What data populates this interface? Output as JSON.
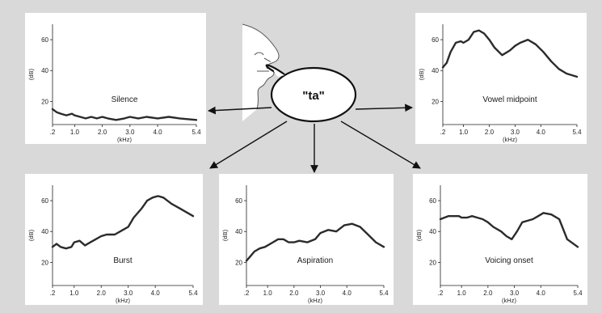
{
  "center": {
    "bubble_text": "\"ta\""
  },
  "chart_data": [
    {
      "id": "silence",
      "type": "line",
      "annotation": "Silence",
      "xlabel": "(kHz)",
      "ylabel": "(dB)",
      "x_tick_labels": [
        ".2",
        "1.0",
        "2.0",
        "3.0",
        "4.0",
        "5.4"
      ],
      "x_tick_values": [
        0.2,
        1.0,
        2.0,
        3.0,
        4.0,
        5.4
      ],
      "y_ticks": [
        20,
        40,
        60
      ],
      "xlim": [
        0.2,
        5.4
      ],
      "ylim": [
        5,
        70
      ],
      "x": [
        0.2,
        0.35,
        0.5,
        0.7,
        0.9,
        1.0,
        1.2,
        1.4,
        1.6,
        1.8,
        2.0,
        2.2,
        2.5,
        2.8,
        3.0,
        3.3,
        3.6,
        4.0,
        4.4,
        4.8,
        5.4
      ],
      "y": [
        15,
        13,
        12,
        11,
        12,
        11,
        10,
        9,
        10,
        9,
        10,
        9,
        8,
        9,
        10,
        9,
        10,
        9,
        10,
        9,
        8
      ]
    },
    {
      "id": "vowel",
      "type": "line",
      "annotation": "Vowel midpoint",
      "xlabel": "(kHz)",
      "ylabel": "(dB)",
      "x_tick_labels": [
        ".2",
        "1.0",
        "2.0",
        "3.0",
        "4.0",
        "5.4"
      ],
      "x_tick_values": [
        0.2,
        1.0,
        2.0,
        3.0,
        4.0,
        5.4
      ],
      "y_ticks": [
        20,
        40,
        60
      ],
      "xlim": [
        0.2,
        5.4
      ],
      "ylim": [
        5,
        70
      ],
      "x": [
        0.2,
        0.35,
        0.5,
        0.7,
        0.9,
        1.0,
        1.2,
        1.4,
        1.6,
        1.8,
        2.0,
        2.2,
        2.5,
        2.8,
        3.0,
        3.2,
        3.5,
        3.8,
        4.1,
        4.4,
        4.7,
        5.0,
        5.4
      ],
      "y": [
        42,
        45,
        52,
        58,
        59,
        58,
        60,
        65,
        66,
        64,
        60,
        55,
        50,
        53,
        56,
        58,
        60,
        57,
        52,
        46,
        41,
        38,
        36
      ]
    },
    {
      "id": "burst",
      "type": "line",
      "annotation": "Burst",
      "xlabel": "(kHz)",
      "ylabel": "(dB)",
      "x_tick_labels": [
        ".2",
        "1.0",
        "2.0",
        "3.0",
        "4.0",
        "5.4"
      ],
      "x_tick_values": [
        0.2,
        1.0,
        2.0,
        3.0,
        4.0,
        5.4
      ],
      "y_ticks": [
        20,
        40,
        60
      ],
      "xlim": [
        0.2,
        5.4
      ],
      "ylim": [
        5,
        70
      ],
      "x": [
        0.2,
        0.35,
        0.5,
        0.7,
        0.9,
        1.0,
        1.2,
        1.4,
        1.6,
        1.8,
        2.0,
        2.2,
        2.5,
        2.8,
        3.0,
        3.2,
        3.5,
        3.7,
        3.9,
        4.1,
        4.3,
        4.6,
        4.9,
        5.2,
        5.4
      ],
      "y": [
        30,
        32,
        30,
        29,
        30,
        33,
        34,
        31,
        33,
        35,
        37,
        38,
        38,
        41,
        43,
        49,
        55,
        60,
        62,
        63,
        62,
        58,
        55,
        52,
        50
      ]
    },
    {
      "id": "aspiration",
      "type": "line",
      "annotation": "Aspiration",
      "xlabel": "(kHz)",
      "ylabel": "(dB)",
      "x_tick_labels": [
        ".2",
        "1.0",
        "2.0",
        "3.0",
        "4.0",
        "5.4"
      ],
      "x_tick_values": [
        0.2,
        1.0,
        2.0,
        3.0,
        4.0,
        5.4
      ],
      "y_ticks": [
        20,
        40,
        60
      ],
      "xlim": [
        0.2,
        5.4
      ],
      "ylim": [
        5,
        70
      ],
      "x": [
        0.2,
        0.35,
        0.5,
        0.7,
        0.9,
        1.0,
        1.2,
        1.4,
        1.6,
        1.8,
        2.0,
        2.2,
        2.5,
        2.8,
        3.0,
        3.3,
        3.6,
        3.9,
        4.2,
        4.5,
        4.8,
        5.1,
        5.4
      ],
      "y": [
        21,
        24,
        27,
        29,
        30,
        31,
        33,
        35,
        35,
        33,
        33,
        34,
        33,
        35,
        39,
        41,
        40,
        44,
        45,
        43,
        38,
        33,
        30
      ]
    },
    {
      "id": "voicing",
      "type": "line",
      "annotation": "Voicing onset",
      "xlabel": "(kHz)",
      "ylabel": "(dB)",
      "x_tick_labels": [
        ".2",
        "1.0",
        "2.0",
        "3.0",
        "4.0",
        "5.4"
      ],
      "x_tick_values": [
        0.2,
        1.0,
        2.0,
        3.0,
        4.0,
        5.4
      ],
      "y_ticks": [
        20,
        40,
        60
      ],
      "xlim": [
        0.2,
        5.4
      ],
      "ylim": [
        5,
        70
      ],
      "x": [
        0.2,
        0.35,
        0.5,
        0.7,
        0.9,
        1.0,
        1.2,
        1.4,
        1.6,
        1.8,
        2.0,
        2.2,
        2.5,
        2.7,
        2.9,
        3.1,
        3.3,
        3.5,
        3.7,
        3.9,
        4.1,
        4.4,
        4.7,
        5.0,
        5.4
      ],
      "y": [
        48,
        49,
        50,
        50,
        50,
        49,
        49,
        50,
        49,
        48,
        46,
        43,
        40,
        37,
        35,
        40,
        46,
        47,
        48,
        50,
        52,
        51,
        48,
        35,
        30
      ]
    }
  ]
}
